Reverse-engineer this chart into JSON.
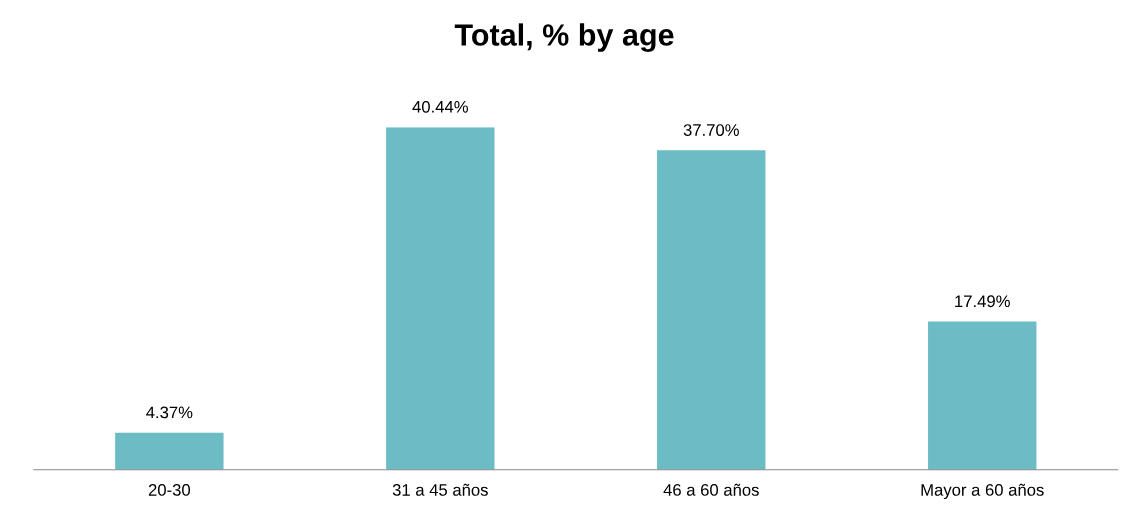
{
  "chart_data": {
    "type": "bar",
    "title": "Total, % by age",
    "categories": [
      "20-30",
      "31 a 45 años",
      "46 a 60 años",
      "Mayor a 60 años"
    ],
    "values": [
      4.37,
      40.44,
      37.7,
      17.49
    ],
    "value_labels": [
      "4.37%",
      "40.44%",
      "37.70%",
      "17.49%"
    ],
    "color": "#6bbcc4",
    "grid": false,
    "legend": false
  }
}
